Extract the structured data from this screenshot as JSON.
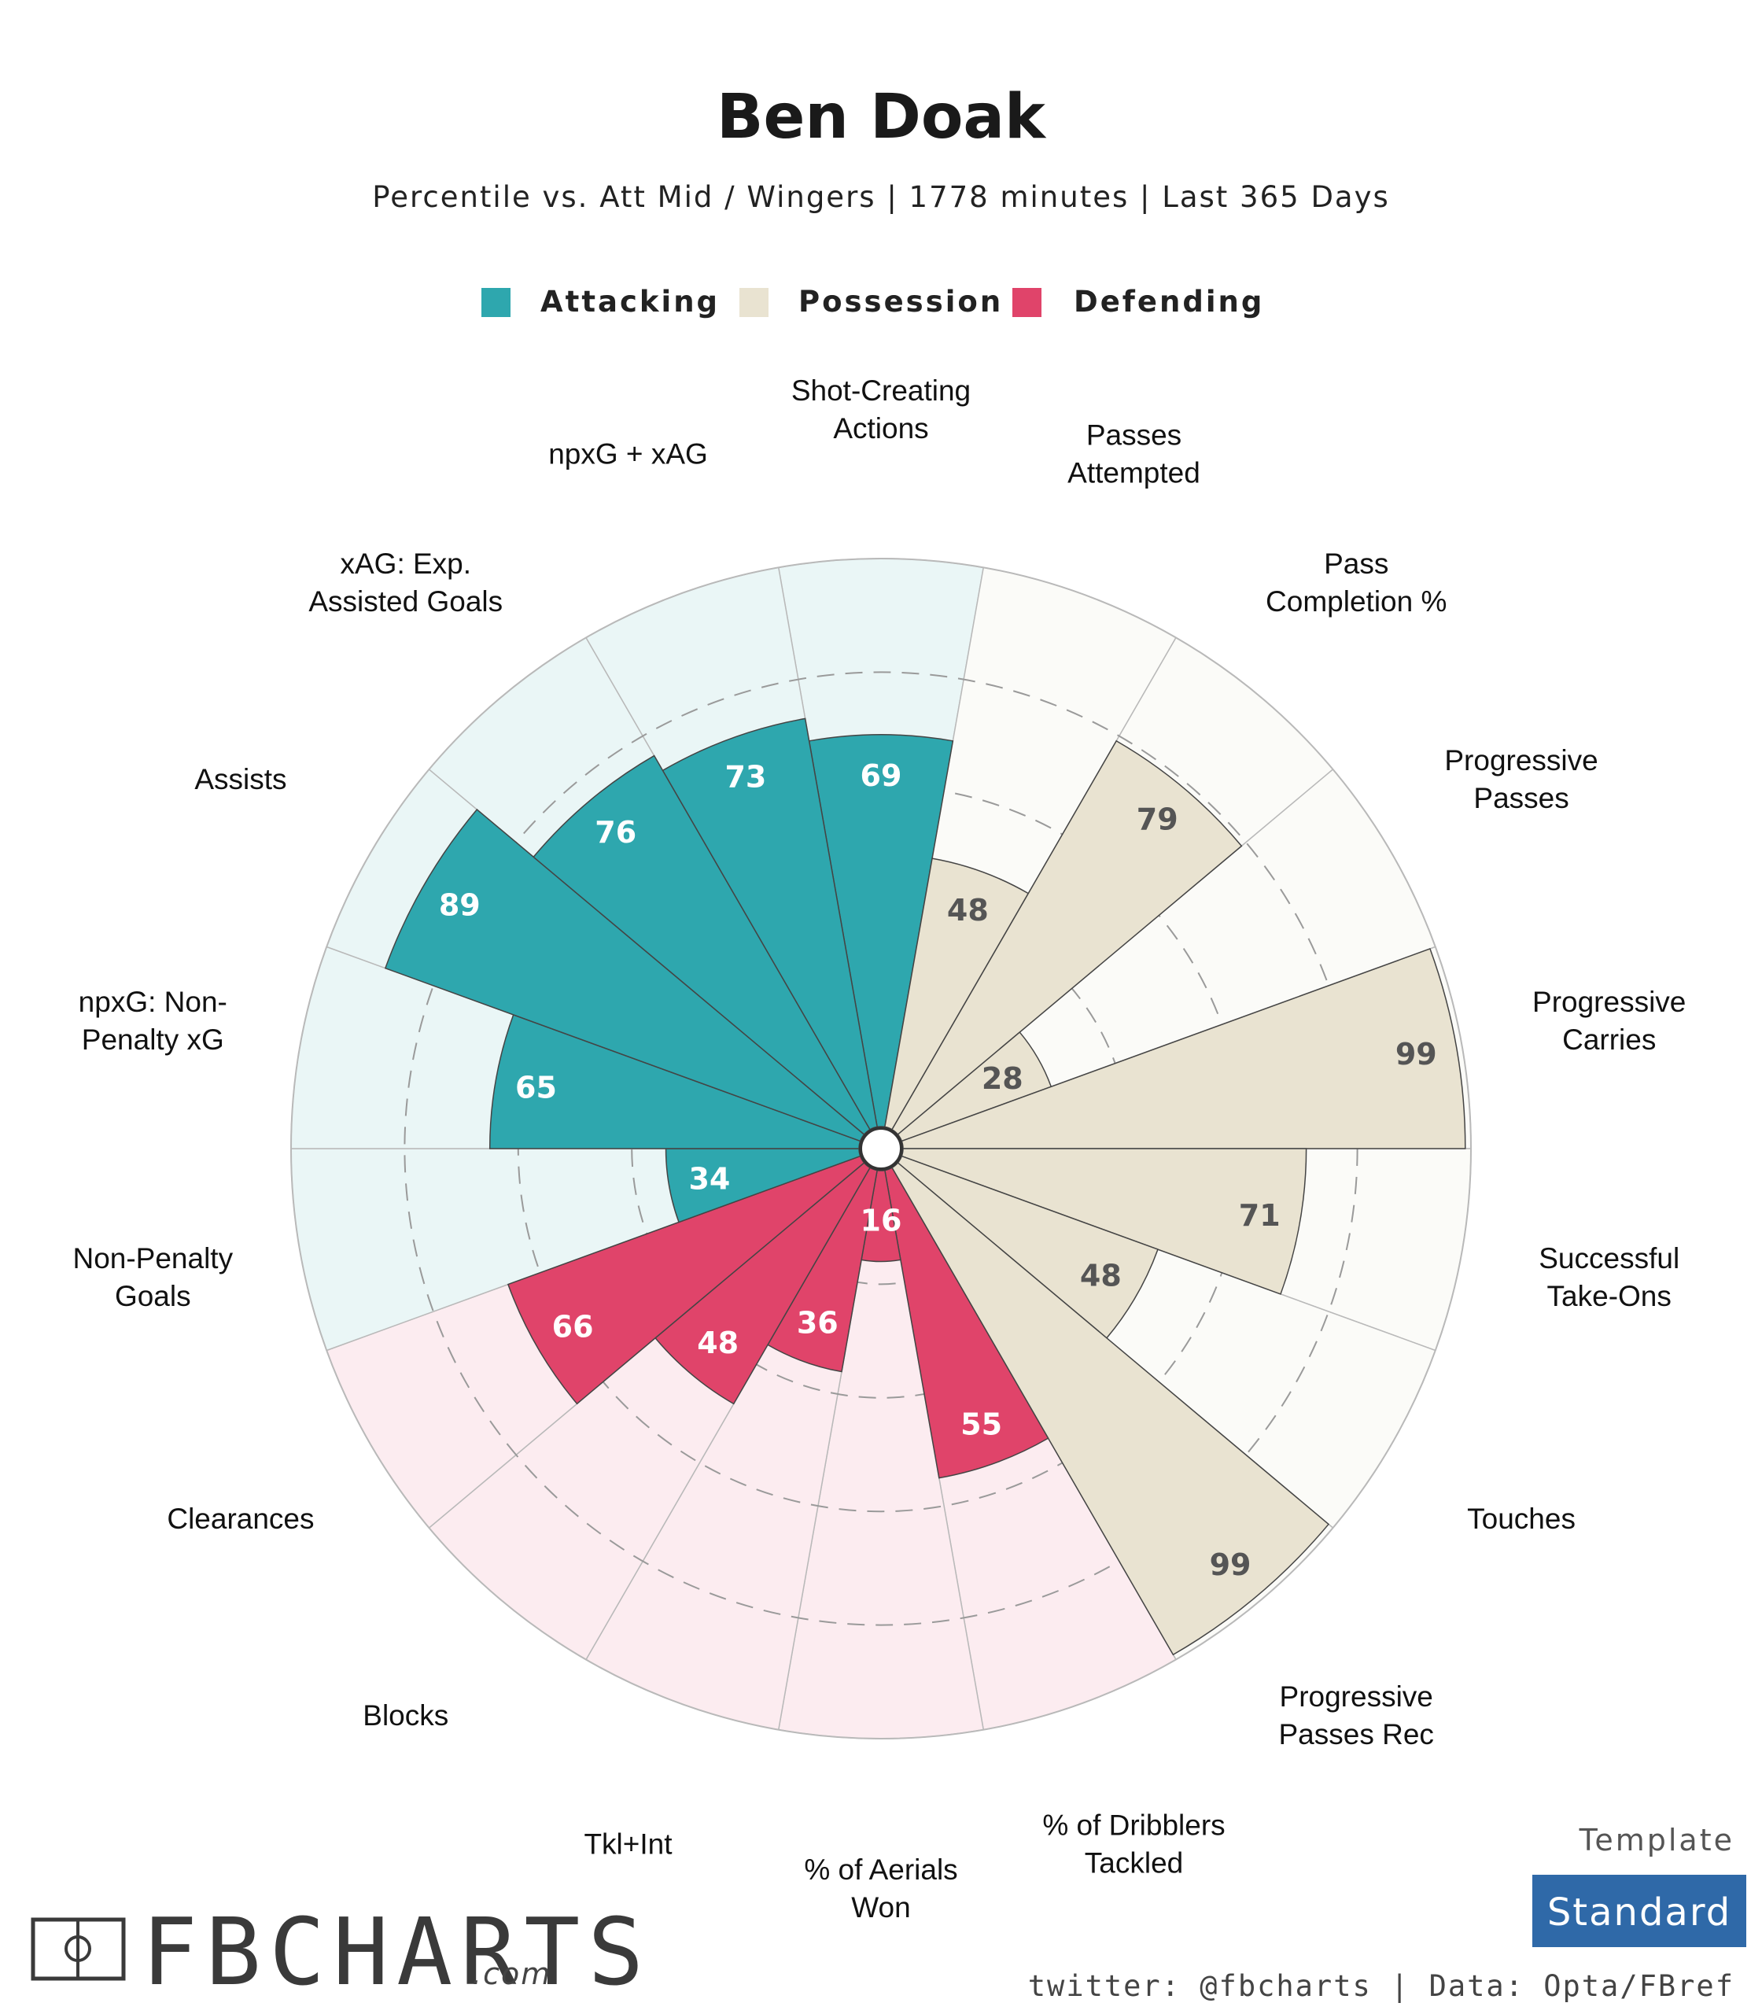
{
  "header": {
    "title": "Ben Doak",
    "subtitle": "Percentile vs. Att Mid / Wingers | 1778 minutes | Last 365 Days"
  },
  "legend": [
    {
      "label": "Attacking",
      "color": "#2ea7ae"
    },
    {
      "label": "Possession",
      "color": "#e9e3d1"
    },
    {
      "label": "Defending",
      "color": "#e0446a"
    }
  ],
  "chart_data": {
    "type": "radial-bar",
    "title": "Ben Doak",
    "range": [
      0,
      100
    ],
    "gridlines": [
      20,
      40,
      60,
      80
    ],
    "categories": [
      {
        "label": [
          "Shot-Creating",
          "Actions"
        ],
        "value": 69,
        "group": "Attacking"
      },
      {
        "label": [
          "Passes",
          "Attempted"
        ],
        "value": 48,
        "group": "Possession"
      },
      {
        "label": [
          "Pass",
          "Completion %"
        ],
        "value": 79,
        "group": "Possession"
      },
      {
        "label": [
          "Progressive",
          "Passes"
        ],
        "value": 28,
        "group": "Possession"
      },
      {
        "label": [
          "Progressive",
          "Carries"
        ],
        "value": 99,
        "group": "Possession"
      },
      {
        "label": [
          "Successful",
          "Take-Ons"
        ],
        "value": 71,
        "group": "Possession"
      },
      {
        "label": [
          "Touches"
        ],
        "value": 48,
        "group": "Possession"
      },
      {
        "label": [
          "Progressive",
          "Passes Rec"
        ],
        "value": 99,
        "group": "Possession"
      },
      {
        "label": [
          "% of Dribblers",
          "Tackled"
        ],
        "value": 55,
        "group": "Defending"
      },
      {
        "label": [
          "% of Aerials",
          "Won"
        ],
        "value": 16,
        "group": "Defending"
      },
      {
        "label": [
          "Tkl+Int"
        ],
        "value": 36,
        "group": "Defending"
      },
      {
        "label": [
          "Blocks"
        ],
        "value": 48,
        "group": "Defending"
      },
      {
        "label": [
          "Clearances"
        ],
        "value": 66,
        "group": "Defending"
      },
      {
        "label": [
          "Non-Penalty",
          "Goals"
        ],
        "value": 34,
        "group": "Attacking"
      },
      {
        "label": [
          "npxG: Non-",
          "Penalty xG"
        ],
        "value": 65,
        "group": "Attacking"
      },
      {
        "label": [
          "Assists"
        ],
        "value": 89,
        "group": "Attacking"
      },
      {
        "label": [
          "xAG: Exp.",
          "Assisted Goals"
        ],
        "value": 76,
        "group": "Attacking"
      },
      {
        "label": [
          "npxG + xAG"
        ],
        "value": 73,
        "group": "Attacking"
      }
    ]
  },
  "group_colors": {
    "Attacking": {
      "fill": "#2ea7ae",
      "bg": "#eaf6f6",
      "text": "#ffffff"
    },
    "Possession": {
      "fill": "#e9e3d1",
      "bg": "#fbfbf8",
      "text": "#555555"
    },
    "Defending": {
      "fill": "#e0446a",
      "bg": "#fcecf0",
      "text": "#ffffff"
    }
  },
  "footer": {
    "template_label": "Template",
    "template_value": "Standard",
    "template_color": "#2f69a8",
    "credit": "twitter: @fbcharts | Data: Opta/FBref",
    "logo_text": "FBCHARTS",
    "logo_suffix": ".com"
  }
}
